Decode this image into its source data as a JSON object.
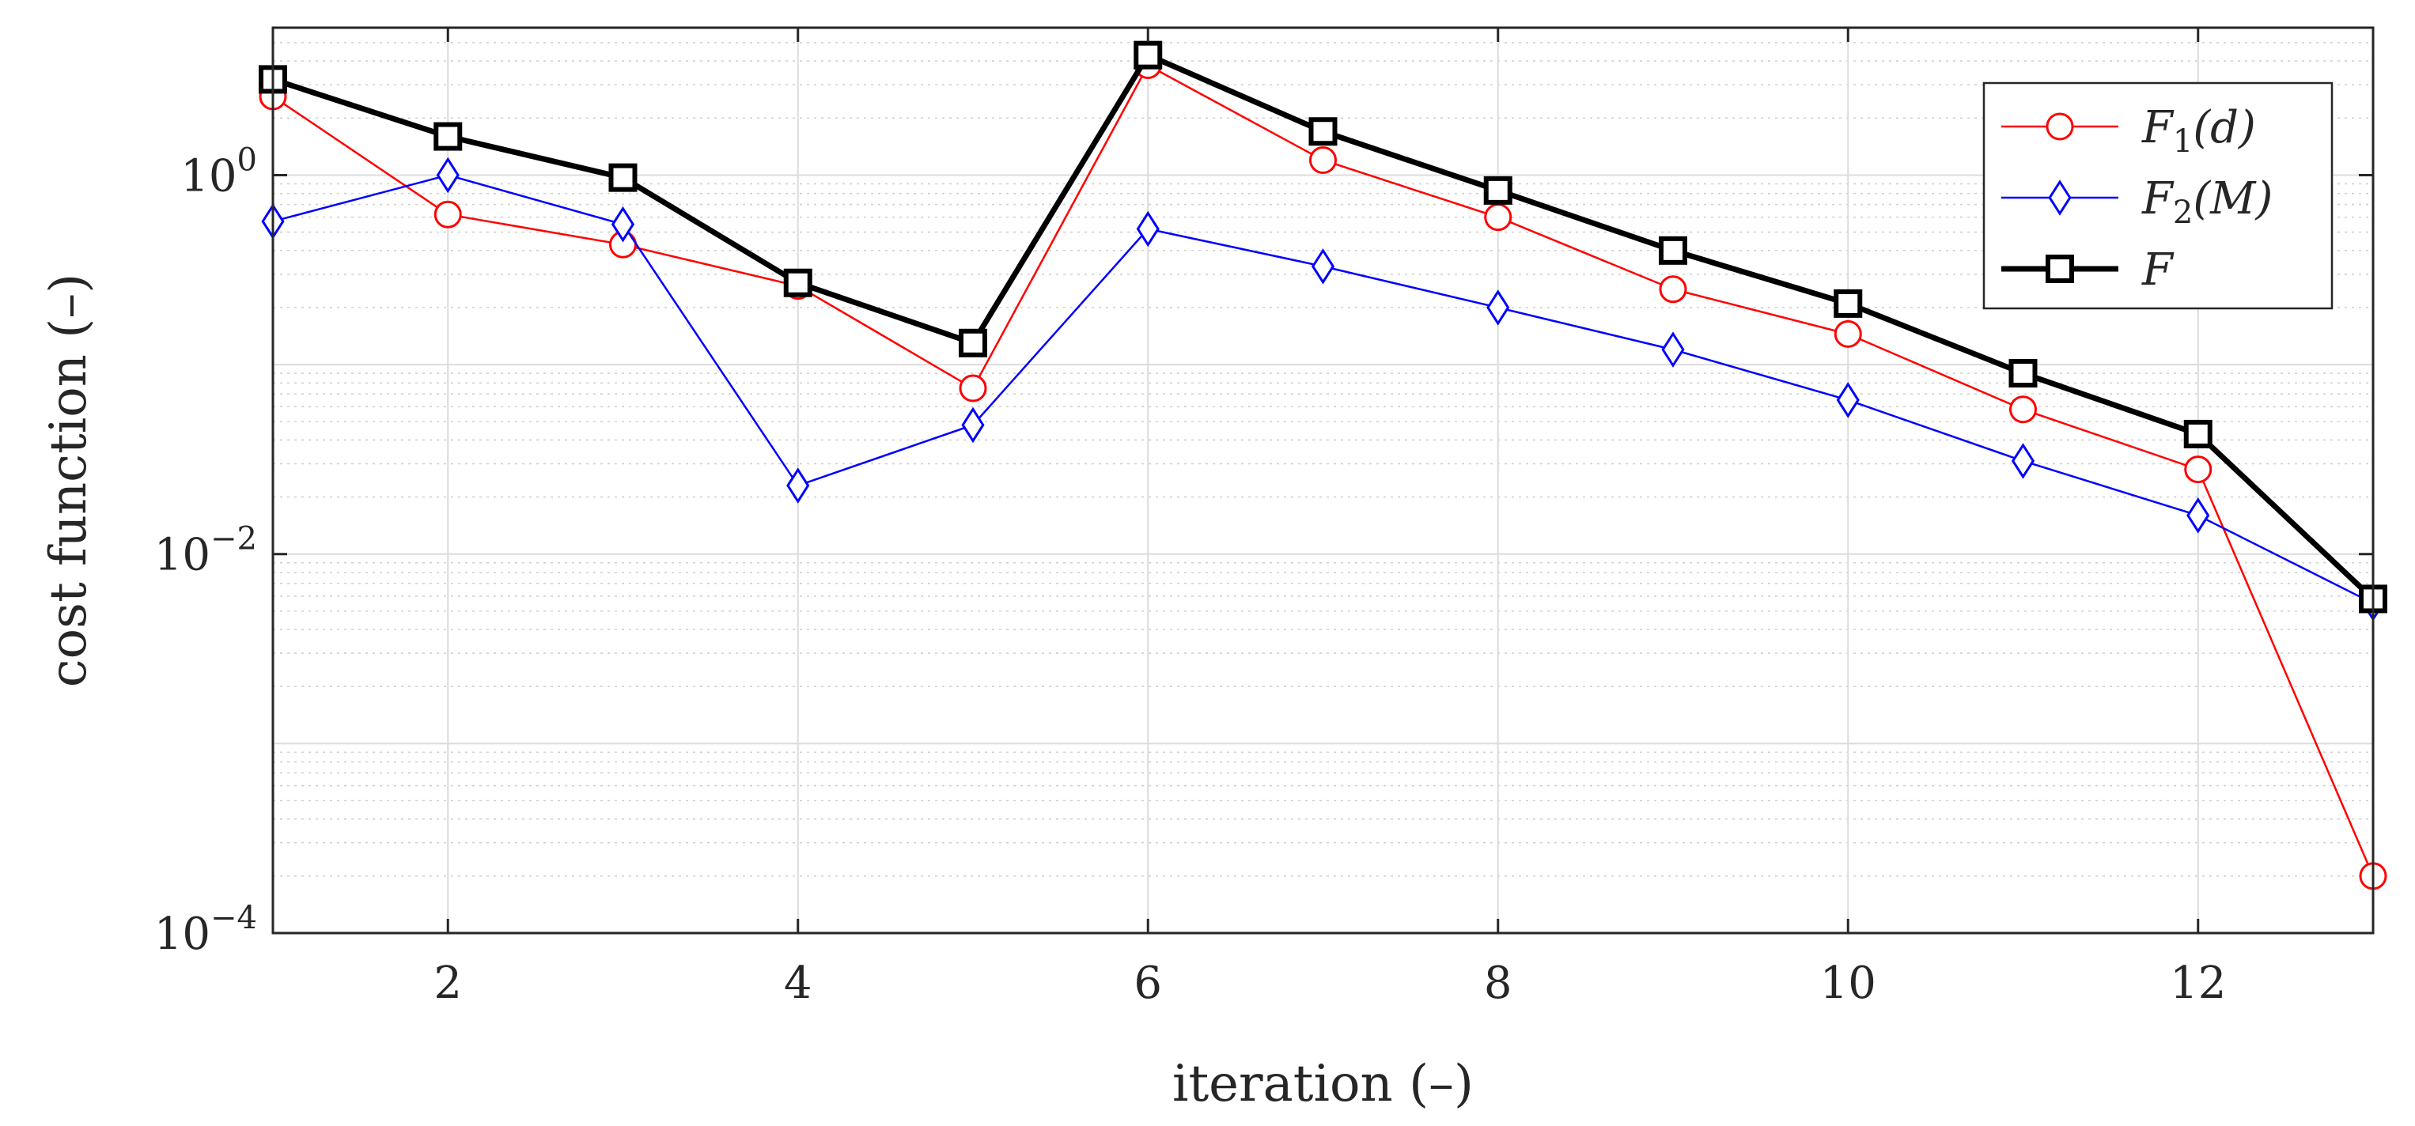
{
  "chart_data": {
    "type": "line",
    "title": "",
    "xlabel": "iteration (–)",
    "ylabel": "cost function (–)",
    "x": [
      1,
      2,
      3,
      4,
      5,
      6,
      7,
      8,
      9,
      10,
      11,
      12,
      13
    ],
    "xlim": [
      1,
      13
    ],
    "ylim": [
      0.0001,
      6
    ],
    "yscale": "log",
    "grid": true,
    "legend_position": "top-right",
    "xticks": [
      2,
      4,
      6,
      8,
      10,
      12
    ],
    "xtick_labels": [
      "2",
      "4",
      "6",
      "8",
      "10",
      "12"
    ],
    "yticks": [
      {
        "value": 0.0001,
        "base": "10",
        "exponent": "−4"
      },
      {
        "value": 0.01,
        "base": "10",
        "exponent": "−2"
      },
      {
        "value": 1,
        "base": "10",
        "exponent": "0"
      }
    ],
    "series": [
      {
        "name": "F1(d)",
        "label_main": "F",
        "label_sub": "1",
        "label_arg": "(d)",
        "color": "#ff0000",
        "marker": "circle",
        "values": [
          2.6,
          0.62,
          0.43,
          0.26,
          0.075,
          3.8,
          1.2,
          0.6,
          0.25,
          0.145,
          0.058,
          0.028,
          0.0002
        ]
      },
      {
        "name": "F2(M)",
        "label_main": "F",
        "label_sub": "2",
        "label_arg": "(M)",
        "color": "#0000ff",
        "marker": "diamond",
        "values": [
          0.57,
          1.0,
          0.55,
          0.023,
          0.048,
          0.52,
          0.33,
          0.2,
          0.12,
          0.065,
          0.031,
          0.016,
          0.0055
        ]
      },
      {
        "name": "F",
        "label_main": "F",
        "label_sub": "",
        "label_arg": "",
        "color": "#000000",
        "marker": "square",
        "values": [
          3.2,
          1.6,
          0.97,
          0.27,
          0.13,
          4.3,
          1.7,
          0.83,
          0.4,
          0.21,
          0.09,
          0.043,
          0.0058
        ]
      }
    ]
  }
}
